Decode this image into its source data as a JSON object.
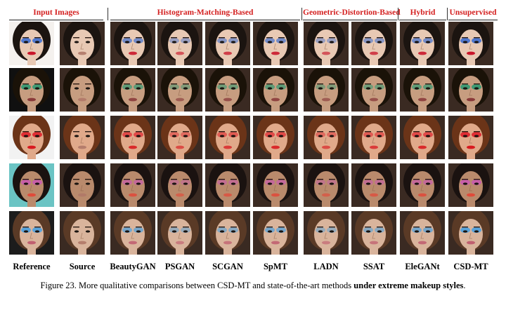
{
  "groups": [
    {
      "label": "Input Images"
    },
    {
      "label": "Histogram-Matching-Based"
    },
    {
      "label": "Geometric-Distortion-Based"
    },
    {
      "label": "Hybrid"
    },
    {
      "label": "Unsupervised"
    }
  ],
  "columns": [
    "Reference",
    "Source",
    "BeautyGAN",
    "PSGAN",
    "SCGAN",
    "SpMT",
    "LADN",
    "SSAT",
    "EleGANt",
    "CSD-MT"
  ],
  "rows": [
    {
      "ref_bg": "#f4f1ee",
      "skin": "#e8c9b4",
      "hair": "#1b1410",
      "eye": "#3f6fd0",
      "lip": "#c9152a"
    },
    {
      "ref_bg": "#101010",
      "skin": "#c79d80",
      "hair": "#1a1208",
      "eye": "#2f9a72",
      "lip": "#8a3a3a"
    },
    {
      "ref_bg": "#f2f2f2",
      "skin": "#e0a98a",
      "hair": "#6b3418",
      "eye": "#e0202a",
      "lip": "#d81a20"
    },
    {
      "ref_bg": "#6bc4c4",
      "skin": "#b98a6c",
      "hair": "#1a1210",
      "eye": "#c95ab0",
      "lip": "#e04a3a"
    },
    {
      "ref_bg": "#1c1c1c",
      "skin": "#d9b49c",
      "hair": "#5a3a26",
      "eye": "#4aa0e0",
      "lip": "#c06070"
    }
  ],
  "caption": {
    "prefix": "Figure 23. More qualitative comparisons between CSD-MT and state-of-the-art methods ",
    "emphasis": "under extreme makeup styles",
    "suffix": "."
  }
}
